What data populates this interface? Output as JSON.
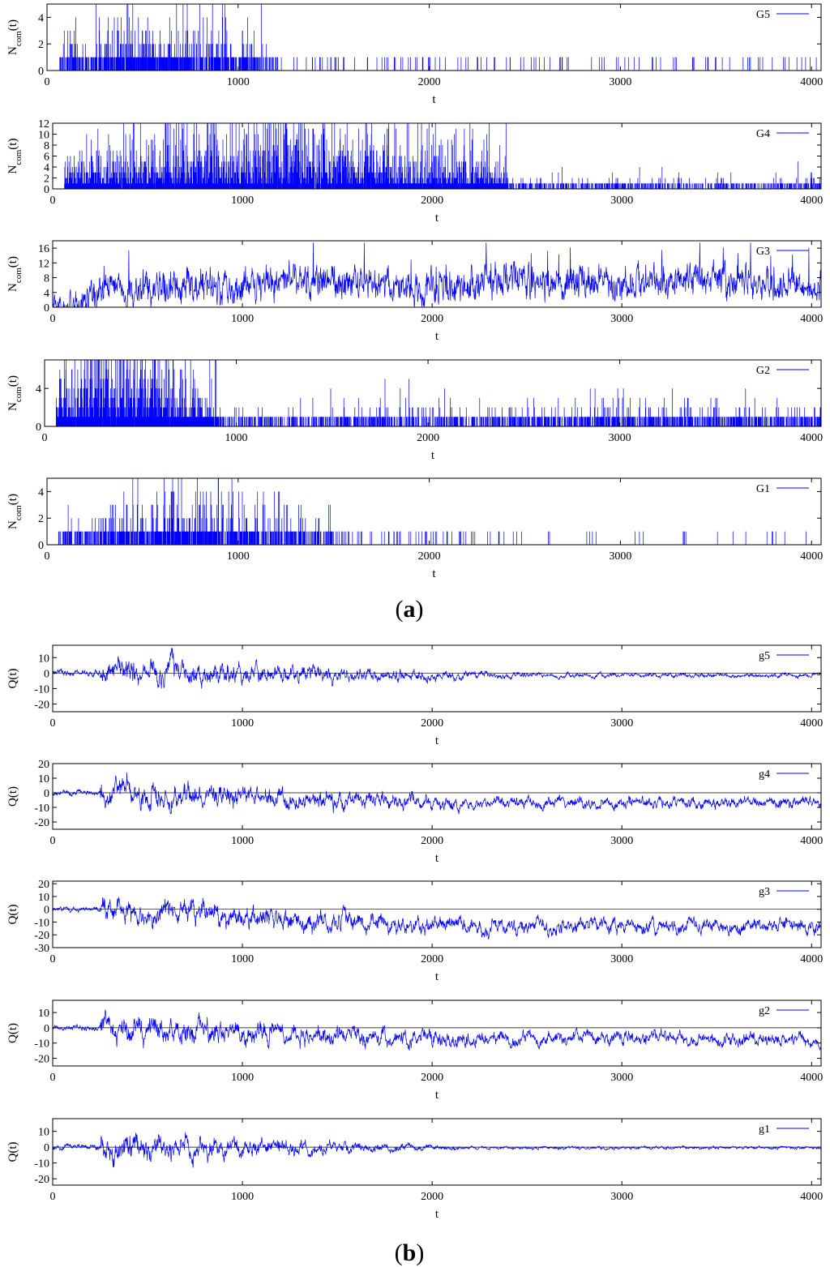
{
  "colors": {
    "series": "#0000ff",
    "axis": "#000000"
  },
  "panel_labels": {
    "a": "a",
    "b": "b"
  },
  "chart_data": [
    {
      "id": "G5",
      "type": "line",
      "group": "a",
      "legend": "G5",
      "xlabel": "t",
      "ylabel_main": "N",
      "ylabel_sub": "com",
      "ylabel_tail": "(t)",
      "xlim": [
        0,
        4050
      ],
      "ylim": [
        0,
        5
      ],
      "xticks": [
        0,
        1000,
        2000,
        3000,
        4000
      ],
      "yticks": [
        0,
        2,
        4
      ],
      "style": "spikes",
      "profile": {
        "base": 0.25,
        "burst_end": 1200,
        "burst_level": 1.0,
        "tail_level": 0.12,
        "max": 5
      }
    },
    {
      "id": "G4",
      "type": "line",
      "group": "a",
      "legend": "G4",
      "xlabel": "t",
      "ylabel_main": "N",
      "ylabel_sub": "com",
      "ylabel_tail": "(t)",
      "xlim": [
        0,
        4050
      ],
      "ylim": [
        0,
        12
      ],
      "xticks": [
        0,
        1000,
        2000,
        3000,
        4000
      ],
      "yticks": [
        0,
        2,
        4,
        6,
        8,
        10,
        12
      ],
      "style": "spikes",
      "profile": {
        "base": 0.8,
        "burst_end": 2400,
        "burst_level": 3.2,
        "tail_level": 0.6,
        "max": 12
      }
    },
    {
      "id": "G3",
      "type": "line",
      "group": "a",
      "legend": "G3",
      "xlabel": "t",
      "ylabel_main": "N",
      "ylabel_sub": "com",
      "ylabel_tail": "(t)",
      "xlim": [
        0,
        4050
      ],
      "ylim": [
        0,
        18
      ],
      "xticks": [
        0,
        1000,
        2000,
        3000,
        4000
      ],
      "yticks": [
        0,
        4,
        8,
        12,
        16
      ],
      "style": "dense",
      "profile": {
        "base": 0.5,
        "burst_end": 300,
        "burst_level": 5.5,
        "tail_level": 6.5,
        "max": 17.5
      }
    },
    {
      "id": "G2",
      "type": "line",
      "group": "a",
      "legend": "G2",
      "xlabel": "t",
      "ylabel_main": "N",
      "ylabel_sub": "com",
      "ylabel_tail": "(t)",
      "xlim": [
        0,
        4050
      ],
      "ylim": [
        0,
        7
      ],
      "xticks": [
        0,
        1000,
        2000,
        3000,
        4000
      ],
      "yticks": [
        0,
        4
      ],
      "style": "spikes",
      "profile": {
        "base": 0.6,
        "burst_end": 900,
        "burst_level": 2.4,
        "tail_level": 0.9,
        "max": 7
      }
    },
    {
      "id": "G1",
      "type": "line",
      "group": "a",
      "legend": "G1",
      "xlabel": "t",
      "ylabel_main": "N",
      "ylabel_sub": "com",
      "ylabel_tail": "(t)",
      "xlim": [
        0,
        4050
      ],
      "ylim": [
        0,
        5
      ],
      "xticks": [
        0,
        1000,
        2000,
        3000,
        4000
      ],
      "yticks": [
        0,
        2,
        4
      ],
      "style": "spikes",
      "profile": {
        "base": 0.3,
        "burst_end": 1500,
        "burst_level": 0.9,
        "tail_level": 0.05,
        "max": 5
      }
    },
    {
      "id": "g5",
      "type": "line",
      "group": "b",
      "legend": "g5",
      "xlabel": "t",
      "ylabel_main": "Q(t)",
      "ylabel_sub": "",
      "ylabel_tail": "",
      "xlim": [
        0,
        4050
      ],
      "ylim": [
        -25,
        18
      ],
      "xticks": [
        0,
        1000,
        2000,
        3000,
        4000
      ],
      "yticks": [
        -20,
        -10,
        0,
        10
      ],
      "zero_line": true,
      "style": "walk",
      "profile": {
        "amp_early": 9,
        "amp_late": 1.5,
        "drift": -1.5,
        "decay_end": 2600
      }
    },
    {
      "id": "g4",
      "type": "line",
      "group": "b",
      "legend": "g4",
      "xlabel": "t",
      "ylabel_main": "Q(t)",
      "ylabel_sub": "",
      "ylabel_tail": "",
      "xlim": [
        0,
        4050
      ],
      "ylim": [
        -25,
        20
      ],
      "xticks": [
        0,
        1000,
        2000,
        3000,
        4000
      ],
      "yticks": [
        -20,
        -10,
        0,
        10,
        20
      ],
      "zero_line": true,
      "style": "walk",
      "profile": {
        "amp_early": 9,
        "amp_late": 4,
        "drift": -7,
        "decay_end": 2400
      }
    },
    {
      "id": "g3",
      "type": "line",
      "group": "b",
      "legend": "g3",
      "xlabel": "t",
      "ylabel_main": "Q(t)",
      "ylabel_sub": "",
      "ylabel_tail": "",
      "xlim": [
        0,
        4050
      ],
      "ylim": [
        -30,
        22
      ],
      "xticks": [
        0,
        1000,
        2000,
        3000,
        4000
      ],
      "yticks": [
        -30,
        -20,
        -10,
        0,
        10,
        20
      ],
      "zero_line": true,
      "style": "walk",
      "profile": {
        "amp_early": 10,
        "amp_late": 6,
        "drift": -13,
        "decay_end": 2400
      }
    },
    {
      "id": "g2",
      "type": "line",
      "group": "b",
      "legend": "g2",
      "xlabel": "t",
      "ylabel_main": "Q(t)",
      "ylabel_sub": "",
      "ylabel_tail": "",
      "xlim": [
        0,
        4050
      ],
      "ylim": [
        -25,
        18
      ],
      "xticks": [
        0,
        1000,
        2000,
        3000,
        4000
      ],
      "yticks": [
        -20,
        -10,
        0,
        10
      ],
      "zero_line": true,
      "style": "walk",
      "profile": {
        "amp_early": 9,
        "amp_late": 4.5,
        "drift": -7,
        "decay_end": 2400
      }
    },
    {
      "id": "g1",
      "type": "line",
      "group": "b",
      "legend": "g1",
      "xlabel": "t",
      "ylabel_main": "Q(t)",
      "ylabel_sub": "",
      "ylabel_tail": "",
      "xlim": [
        0,
        4050
      ],
      "ylim": [
        -24,
        18
      ],
      "xticks": [
        0,
        1000,
        2000,
        3000,
        4000
      ],
      "yticks": [
        -20,
        -10,
        0,
        10
      ],
      "zero_line": true,
      "style": "walk",
      "profile": {
        "amp_early": 9,
        "amp_late": 1,
        "drift": -0.5,
        "decay_end": 2200
      }
    }
  ]
}
